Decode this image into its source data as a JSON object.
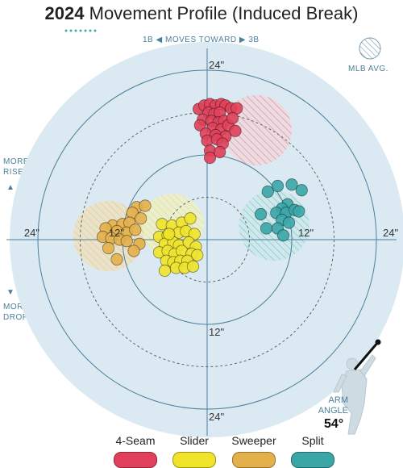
{
  "header": {
    "year": "2024",
    "title": "Movement Profile (Induced Break)"
  },
  "direction": {
    "left": "1B",
    "text": "MOVES TOWARD",
    "right": "3B"
  },
  "more_rise": [
    "MORE",
    "RISE"
  ],
  "more_drop": [
    "MORE",
    "DROP"
  ],
  "mlb_avg_label": "MLB AVG.",
  "arm_angle": {
    "label_line1": "ARM",
    "label_line2": "ANGLE",
    "value": "54°"
  },
  "colors": {
    "4-Seam": "#e0405a",
    "Slider": "#f0e32a",
    "Sweeper": "#e3b04a",
    "Split": "#3aa6a8",
    "background": "#dbeaf2",
    "axis": "#4b7f9a"
  },
  "chart_data": {
    "type": "scatter",
    "x_unit": "inches horizontal break",
    "y_unit": "inches induced vertical break",
    "xlim": [
      -28,
      28
    ],
    "ylim": [
      -28,
      28
    ],
    "rings": [
      6,
      12,
      18,
      24
    ],
    "ring_labels": [
      {
        "text": "24\"",
        "x": 0,
        "y": 24,
        "pos": "top"
      },
      {
        "text": "24\"",
        "x": -24,
        "y": 0,
        "pos": "left"
      },
      {
        "text": "24\"",
        "x": 24,
        "y": 0,
        "pos": "right"
      },
      {
        "text": "24\"",
        "x": 0,
        "y": -24,
        "pos": "bottom"
      },
      {
        "text": "12\"",
        "x": 0,
        "y": -12,
        "pos": "bottom"
      },
      {
        "text": "12\"",
        "x": 12,
        "y": 0,
        "pos": "right"
      },
      {
        "text": "12\"",
        "x": -12,
        "y": 0,
        "pos": "left"
      }
    ],
    "mlb_averages": [
      {
        "pitch": "4-Seam",
        "x": 7,
        "y": 15.5,
        "r": 5
      },
      {
        "pitch": "Slider",
        "x": -5,
        "y": 2,
        "r": 4.5
      },
      {
        "pitch": "Sweeper",
        "x": -14,
        "y": 0.5,
        "r": 5
      },
      {
        "pitch": "Split",
        "x": 9.5,
        "y": 2,
        "r": 5
      }
    ],
    "series": [
      {
        "name": "4-Seam",
        "x": [
          -1.2,
          -0.4,
          0.4,
          1.2,
          2.0,
          2.6,
          0.2,
          1.0,
          1.8,
          -0.6,
          3.4,
          4.2,
          0.6,
          1.6,
          2.4,
          -1.0,
          0.8,
          2.0,
          3.0,
          3.6,
          -0.2,
          1.2,
          2.6,
          4.0,
          0.0,
          1.4,
          2.2,
          0.4,
          0.4,
          1.8
        ],
        "y": [
          18.5,
          19.0,
          19.2,
          19.0,
          19.2,
          19.0,
          18.0,
          17.8,
          18.0,
          17.0,
          18.6,
          18.6,
          16.8,
          16.6,
          16.8,
          16.2,
          15.8,
          15.6,
          16.2,
          17.2,
          15.0,
          14.8,
          14.6,
          15.4,
          14.0,
          14.2,
          13.6,
          12.6,
          11.6,
          12.4
        ]
      },
      {
        "name": "Slider",
        "x": [
          -6.4,
          -5.0,
          -3.6,
          -2.4,
          -6.8,
          -5.6,
          -4.0,
          -3.0,
          -1.8,
          -6.0,
          -4.8,
          -4.0,
          -2.6,
          -1.6,
          -6.8,
          -5.6,
          -4.6,
          -3.6,
          -2.2,
          -1.4,
          -5.8,
          -4.8,
          -3.8,
          -2.8,
          -4.4,
          -3.2,
          -6.0,
          -2.0,
          -5.4
        ],
        "y": [
          2.2,
          2.0,
          2.4,
          3.0,
          0.4,
          0.6,
          1.0,
          1.2,
          0.8,
          -0.6,
          -0.4,
          -0.8,
          -0.4,
          -1.0,
          -1.8,
          -1.6,
          -2.0,
          -1.6,
          -2.0,
          -2.2,
          -3.0,
          -3.2,
          -3.0,
          -3.0,
          -4.0,
          -4.0,
          -4.4,
          -3.8,
          0.8
        ]
      },
      {
        "name": "Sweeper",
        "x": [
          -10.0,
          -8.8,
          -10.6,
          -9.4,
          -13.4,
          -12.0,
          -11.0,
          -14.4,
          -12.8,
          -11.4,
          -10.2,
          -14.8,
          -13.6,
          -12.4,
          -11.4,
          -9.6,
          -14.0,
          -10.4,
          -12.8
        ],
        "y": [
          4.6,
          4.8,
          3.8,
          3.0,
          2.0,
          2.2,
          2.4,
          1.6,
          1.2,
          1.0,
          1.4,
          0.4,
          0.2,
          0.0,
          -0.2,
          -0.6,
          -1.2,
          -1.6,
          -2.8
        ]
      },
      {
        "name": "Split",
        "x": [
          10.0,
          12.0,
          13.4,
          8.6,
          11.4,
          10.6,
          9.8,
          11.2,
          12.4,
          13.0,
          7.6,
          10.6,
          11.6,
          8.4,
          10.0,
          10.8
        ],
        "y": [
          7.6,
          7.8,
          7.0,
          6.8,
          5.0,
          4.4,
          3.8,
          3.8,
          4.2,
          4.0,
          3.6,
          2.8,
          2.4,
          1.6,
          1.6,
          0.6
        ]
      }
    ]
  },
  "legend": [
    {
      "label": "4-Seam",
      "key": "4-Seam"
    },
    {
      "label": "Slider",
      "key": "Slider"
    },
    {
      "label": "Sweeper",
      "key": "Sweeper"
    },
    {
      "label": "Split",
      "key": "Split"
    }
  ]
}
